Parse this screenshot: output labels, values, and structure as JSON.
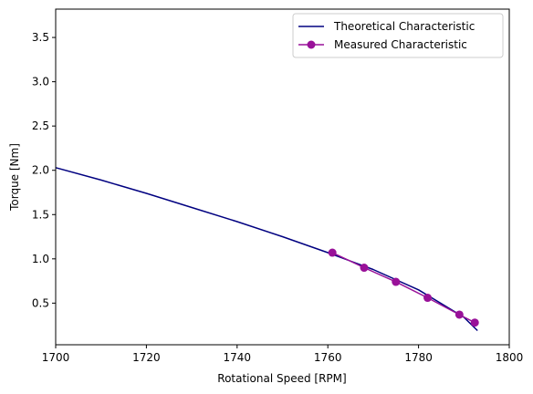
{
  "chart_data": {
    "type": "line",
    "xlabel": "Rotational Speed [RPM]",
    "ylabel": "Torque [Nm]",
    "xlim": [
      1700,
      1800
    ],
    "ylim": [
      0.03,
      3.82
    ],
    "x_ticks": [
      1700,
      1720,
      1740,
      1760,
      1780,
      1800
    ],
    "y_ticks": [
      0.5,
      1.0,
      1.5,
      2.0,
      2.5,
      3.0,
      3.5
    ],
    "x_tick_labels": [
      "1700",
      "1720",
      "1740",
      "1760",
      "1780",
      "1800"
    ],
    "y_tick_labels": [
      "0.5",
      "1.0",
      "1.5",
      "2.0",
      "2.5",
      "3.0",
      "3.5"
    ],
    "grid": false,
    "legend_position": "top-right",
    "series": [
      {
        "name": "Theoretical Characteristic",
        "color": "#000080",
        "marker": "none",
        "x": [
          1700,
          1710,
          1720,
          1730,
          1740,
          1750,
          1760,
          1770,
          1780,
          1790,
          1793
        ],
        "y": [
          2.03,
          1.89,
          1.74,
          1.58,
          1.42,
          1.25,
          1.07,
          0.88,
          0.65,
          0.34,
          0.19
        ]
      },
      {
        "name": "Measured Characteristic",
        "color": "#991199",
        "marker": "circle",
        "x": [
          1761,
          1768,
          1775,
          1782,
          1789,
          1792.4
        ],
        "y": [
          1.07,
          0.9,
          0.74,
          0.56,
          0.37,
          0.28
        ]
      }
    ]
  }
}
